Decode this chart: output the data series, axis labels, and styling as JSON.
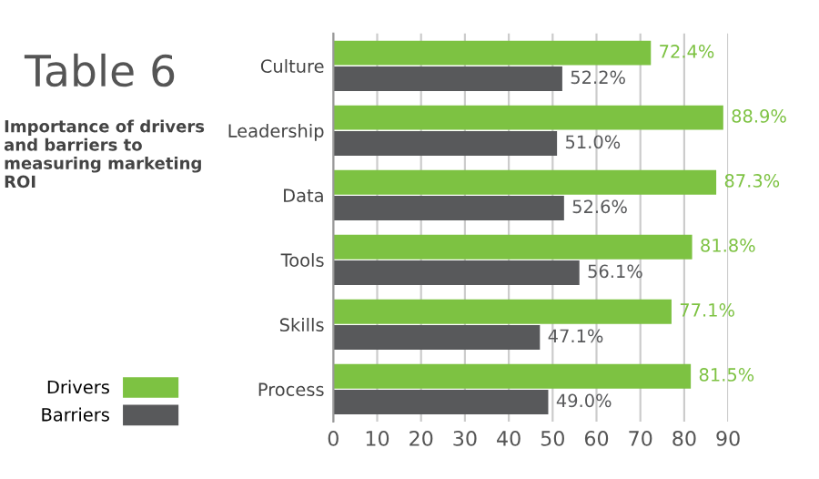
{
  "chart_data": {
    "type": "bar",
    "orientation": "horizontal",
    "title": "Table 6",
    "subtitle": "Importance of drivers and barriers to measuring marketing ROI",
    "categories": [
      "Culture",
      "Leadership",
      "Data",
      "Tools",
      "Skills",
      "Process"
    ],
    "series": [
      {
        "name": "Drivers",
        "color": "#7dc242",
        "values": [
          72.4,
          88.9,
          87.3,
          81.8,
          77.1,
          81.5
        ],
        "value_labels": [
          "72.4%",
          "88.9%",
          "87.3%",
          "81.8%",
          "77.1%",
          "81.5%"
        ]
      },
      {
        "name": "Barriers",
        "color": "#58595b",
        "values": [
          52.2,
          51.0,
          52.6,
          56.1,
          47.1,
          49.0
        ],
        "value_labels": [
          "52.2%",
          "51.0%",
          "52.6%",
          "56.1%",
          "47.1%",
          "49.0%"
        ]
      }
    ],
    "xlim": [
      0,
      90
    ],
    "xticks": [
      0,
      10,
      20,
      30,
      40,
      50,
      60,
      70,
      80,
      90
    ],
    "grid": "x",
    "legend": "bottom left"
  }
}
